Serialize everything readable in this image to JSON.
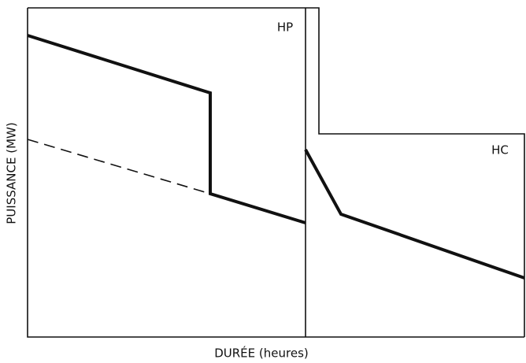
{
  "labels": {
    "hp": "HP",
    "hc": "HC"
  },
  "axes": {
    "y": "PUISSANCE (MW)",
    "x": "DURÉE (heures)"
  }
}
